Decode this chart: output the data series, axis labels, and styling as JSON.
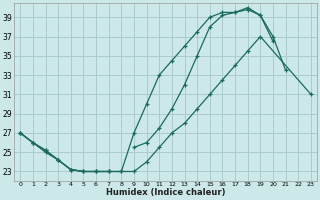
{
  "xlabel": "Humidex (Indice chaleur)",
  "bg_color": "#cce8e8",
  "grid_color": "#aacccc",
  "line_color": "#1a6b5a",
  "xlim": [
    -0.5,
    23.5
  ],
  "ylim": [
    22.0,
    40.5
  ],
  "yticks": [
    23,
    25,
    27,
    29,
    31,
    33,
    35,
    37,
    39
  ],
  "xticks": [
    0,
    1,
    2,
    3,
    4,
    5,
    6,
    7,
    8,
    9,
    10,
    11,
    12,
    13,
    14,
    15,
    16,
    17,
    18,
    19,
    20,
    21,
    22,
    23
  ],
  "line1_x": [
    0,
    1,
    2,
    3,
    4,
    5,
    6,
    7,
    8,
    9,
    10,
    11,
    12,
    13,
    14,
    15,
    16,
    17,
    18,
    19,
    20,
    21
  ],
  "line1_y": [
    27,
    26,
    25.2,
    24.2,
    23.2,
    23.0,
    23.0,
    23.0,
    23.0,
    27.0,
    30.0,
    33.0,
    34.5,
    36.0,
    37.5,
    39.0,
    39.5,
    39.5,
    40.0,
    39.2,
    37.0,
    33.5
  ],
  "line2_x": [
    0,
    1,
    2,
    3,
    4,
    5,
    6,
    7,
    9,
    10,
    11,
    12,
    13,
    14,
    15,
    16,
    17,
    18,
    19,
    20
  ],
  "line2_y": [
    27,
    26,
    25.2,
    24.2,
    23.2,
    23.0,
    23.0,
    23.0,
    25.5,
    26.0,
    27.5,
    29.5,
    32.0,
    35.0,
    38.0,
    39.2,
    39.5,
    39.8,
    39.2,
    36.5
  ],
  "line3_x": [
    0,
    1,
    2,
    3,
    4,
    5,
    6,
    7,
    8,
    9,
    10,
    11,
    12,
    13,
    14,
    15,
    16,
    17,
    18,
    19,
    23
  ],
  "line3_y": [
    27,
    26,
    25.0,
    24.2,
    23.2,
    23.0,
    23.0,
    23.0,
    23.0,
    23.0,
    24.0,
    25.5,
    27.0,
    28.0,
    29.5,
    31.0,
    32.5,
    34.0,
    35.5,
    37.0,
    31.0
  ]
}
